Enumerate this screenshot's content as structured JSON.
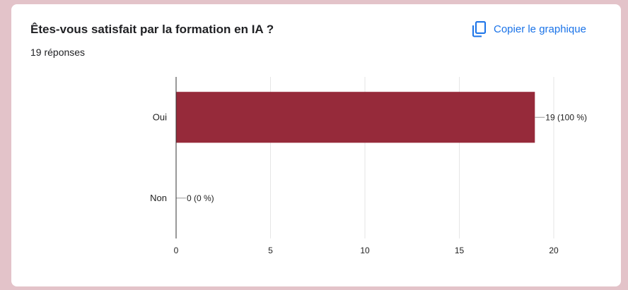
{
  "question": {
    "title": "Êtes-vous satisfait par la formation en IA ?",
    "responses_label": "19 réponses"
  },
  "toolbar": {
    "copy_label": "Copier le graphique",
    "copy_icon": "copy-icon"
  },
  "colors": {
    "bar": "#962a3a",
    "accent": "#1a73e8",
    "background": "#e3c3c9"
  },
  "chart_data": {
    "type": "bar",
    "orientation": "horizontal",
    "categories": [
      "Oui",
      "Non"
    ],
    "values": [
      19,
      0
    ],
    "data_labels": [
      "19 (100 %)",
      "0 (0 %)"
    ],
    "xlim": [
      0,
      20
    ],
    "xticks": [
      0,
      5,
      10,
      15,
      20
    ],
    "grid": true,
    "legend": "none"
  }
}
